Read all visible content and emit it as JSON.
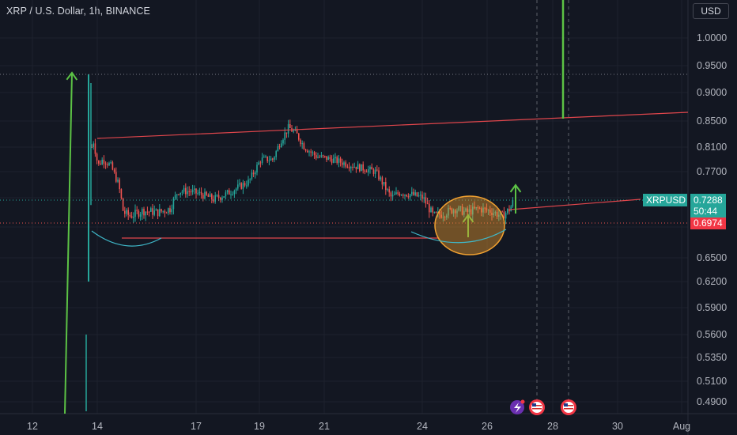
{
  "header": {
    "title": "XRP / U.S. Dollar, 1h, BINANCE",
    "currency_button": "USD"
  },
  "chart_data": {
    "type": "candlestick",
    "symbol": "XRPUSD",
    "y_ticks": [
      1.0,
      0.95,
      0.9,
      0.85,
      0.81,
      0.77,
      0.73,
      0.69,
      0.65,
      0.62,
      0.59,
      0.56,
      0.535,
      0.51,
      0.49
    ],
    "y_tick_labels": [
      "1.0000",
      "0.9500",
      "0.9000",
      "0.8500",
      "0.8100",
      "0.7700",
      "",
      "",
      "0.6500",
      "0.6200",
      "0.5900",
      "0.5600",
      "0.5350",
      "0.5100",
      "0.4900"
    ],
    "x_ticks": [
      "12",
      "14",
      "17",
      "19",
      "21",
      "24",
      "26",
      "28",
      "30",
      "Aug"
    ],
    "last_price": {
      "label": "XRPUSD",
      "value": "0.7288",
      "countdown": "50:44",
      "color": "#26a69a"
    },
    "marked_price": {
      "value": "0.6974",
      "color": "#f23645"
    },
    "colors": {
      "up": "#26a69a",
      "down": "#ef5350",
      "trendline": "#e0464c",
      "arrow": "#5cc245",
      "curve": "#3fb8c9",
      "ellipse": "#f0a030",
      "background": "#131722"
    }
  }
}
